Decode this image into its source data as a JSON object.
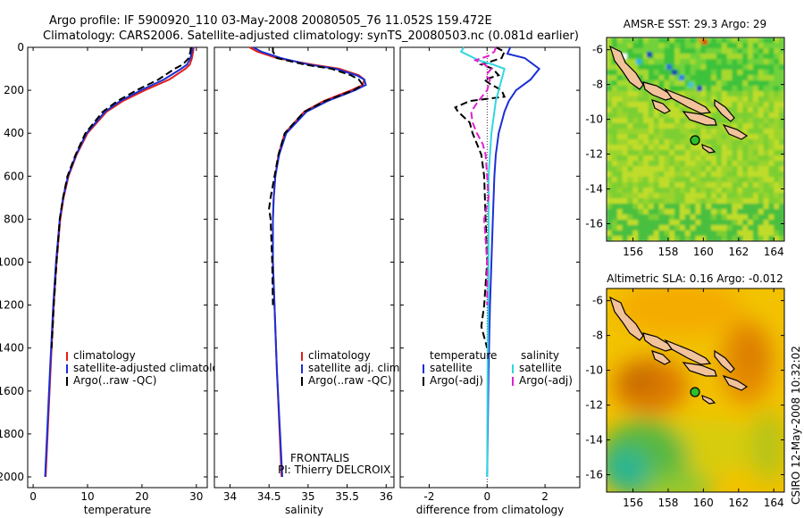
{
  "header": {
    "line1": "Argo profile: IF 5900920_110 03-May-2008 20080505_76 11.052S 159.472E",
    "line2": "Climatology: CARS2006. Satellite-adjusted climatology: synTS_20080503.nc (0.081d earlier)"
  },
  "side_text": "CSIRO 12-May-2008 10:32:02",
  "colors": {
    "climatology": "#e0201b",
    "satellite": "#1b2fd6",
    "argo": "#000000",
    "satellite_diff": "#33d6e0",
    "argo_adj_diff": "#e020d0"
  },
  "chart_data": [
    {
      "type": "line",
      "panel": "temperature",
      "xlabel": "temperature",
      "ylabel": "",
      "xlim": [
        -1,
        32
      ],
      "ylim": [
        2050,
        0
      ],
      "xticks": [
        0,
        10,
        20,
        30
      ],
      "yticks": [
        0,
        200,
        400,
        600,
        800,
        1000,
        1200,
        1400,
        1600,
        1800,
        2000
      ],
      "legend": [
        "climatology",
        "satellite-adjusted climatology",
        "Argo(..raw -QC)"
      ],
      "legend_position": "lower-left",
      "series": [
        {
          "name": "climatology",
          "depth": [
            0,
            20,
            50,
            80,
            100,
            150,
            200,
            250,
            300,
            400,
            500,
            600,
            700,
            800,
            1000,
            1200,
            1500,
            2000
          ],
          "values": [
            29.5,
            29.4,
            29.2,
            28.8,
            28.0,
            25.0,
            20.5,
            16.5,
            13.5,
            10.0,
            8.0,
            6.5,
            5.6,
            5.0,
            4.3,
            3.8,
            3.2,
            2.3
          ]
        },
        {
          "name": "satellite-adjusted climatology",
          "depth": [
            0,
            20,
            50,
            80,
            100,
            150,
            200,
            250,
            300,
            400,
            500,
            600,
            700,
            800,
            1000,
            1200,
            1500,
            2000
          ],
          "values": [
            29.3,
            29.2,
            28.9,
            28.3,
            27.2,
            24.0,
            19.8,
            16.0,
            13.2,
            9.8,
            7.9,
            6.4,
            5.5,
            4.9,
            4.2,
            3.7,
            3.1,
            2.2
          ]
        },
        {
          "name": "Argo(..raw -QC)",
          "depth": [
            0,
            20,
            50,
            80,
            100,
            150,
            200,
            250,
            300,
            400,
            500,
            600,
            700,
            800,
            1000,
            1200,
            1400
          ],
          "values": [
            29.0,
            28.9,
            28.6,
            27.5,
            26.0,
            23.0,
            19.0,
            15.5,
            12.8,
            9.6,
            7.8,
            6.3,
            5.5,
            4.9,
            4.3,
            3.8,
            3.4
          ]
        }
      ]
    },
    {
      "type": "line",
      "panel": "salinity",
      "xlabel": "salinity",
      "ylabel": "",
      "xlim": [
        33.8,
        36.1
      ],
      "ylim": [
        2050,
        0
      ],
      "xticks": [
        34,
        34.5,
        35,
        35.5,
        36
      ],
      "legend": [
        "climatology",
        "satellite adj. clim.",
        "Argo(..raw -QC)"
      ],
      "legend_position": "lower-right",
      "annotations": [
        "FRONTALIS",
        "PI: Thierry DELCROIX"
      ],
      "series": [
        {
          "name": "climatology",
          "depth": [
            0,
            20,
            50,
            80,
            100,
            130,
            150,
            175,
            200,
            250,
            300,
            400,
            500,
            600,
            700,
            800,
            1000,
            1500,
            2000
          ],
          "values": [
            34.25,
            34.35,
            34.6,
            35.05,
            35.4,
            35.65,
            35.72,
            35.7,
            35.55,
            35.2,
            34.95,
            34.7,
            34.62,
            34.58,
            34.56,
            34.55,
            34.55,
            34.6,
            34.66
          ]
        },
        {
          "name": "satellite adj. clim.",
          "depth": [
            0,
            20,
            50,
            80,
            100,
            130,
            150,
            175,
            200,
            250,
            300,
            400,
            500,
            600,
            700,
            800,
            1000,
            1500,
            2000
          ],
          "values": [
            34.3,
            34.4,
            34.65,
            35.0,
            35.35,
            35.62,
            35.72,
            35.74,
            35.6,
            35.25,
            34.98,
            34.72,
            34.63,
            34.58,
            34.56,
            34.55,
            34.55,
            34.6,
            34.67
          ]
        },
        {
          "name": "Argo(..raw -QC)",
          "depth": [
            0,
            20,
            50,
            80,
            100,
            130,
            150,
            175,
            200,
            250,
            300,
            400,
            500,
            600,
            700,
            750,
            800,
            1000,
            1200
          ],
          "values": [
            34.55,
            34.55,
            34.6,
            34.95,
            35.3,
            35.55,
            35.65,
            35.7,
            35.58,
            35.22,
            34.95,
            34.7,
            34.62,
            34.57,
            34.52,
            34.5,
            34.52,
            34.54,
            34.55
          ]
        }
      ]
    },
    {
      "type": "line",
      "panel": "difference",
      "xlabel": "difference from climatology",
      "ylabel": "",
      "xlim": [
        -3,
        3.2
      ],
      "ylim": [
        2050,
        0
      ],
      "xticks": [
        -2,
        0,
        2
      ],
      "legend": [
        "temperature",
        "satellite",
        "Argo(-adj)",
        "salinity",
        "satellite",
        "Argo(-adj)"
      ],
      "legend_position": "lower",
      "series": [
        {
          "name": "temperature satellite",
          "depth": [
            0,
            30,
            50,
            80,
            100,
            150,
            200,
            250,
            300,
            400,
            500,
            600,
            800,
            1000,
            1200,
            1500,
            2000
          ],
          "values": [
            0.8,
            0.7,
            1.3,
            1.6,
            1.8,
            1.5,
            1.0,
            0.75,
            0.6,
            0.4,
            0.3,
            0.25,
            0.2,
            0.15,
            0.1,
            0.05,
            0
          ]
        },
        {
          "name": "temperature Argo(-adj)",
          "depth": [
            0,
            20,
            50,
            80,
            100,
            130,
            150,
            170,
            200,
            230,
            250,
            280,
            300,
            350,
            400,
            500,
            600,
            800,
            1000,
            1200,
            1300,
            1400
          ],
          "values": [
            0.3,
            0.6,
            0.5,
            -0.2,
            0.2,
            0.4,
            -0.1,
            0.1,
            0.5,
            0.6,
            -0.6,
            -1.1,
            -1.0,
            -0.6,
            -0.5,
            -0.2,
            -0.1,
            -0.05,
            0,
            -0.1,
            -0.2,
            0
          ]
        },
        {
          "name": "salinity satellite",
          "depth": [
            0,
            20,
            40,
            60,
            80,
            100,
            150,
            200,
            250,
            300,
            400,
            500,
            600,
            800,
            1000,
            1500,
            2000
          ],
          "values": [
            -0.8,
            -0.9,
            -0.6,
            -0.3,
            0.2,
            0.6,
            0.5,
            0.4,
            0.3,
            0.25,
            0.15,
            0.1,
            0.05,
            0.05,
            0.05,
            0.02,
            0
          ]
        },
        {
          "name": "salinity Argo(-adj)",
          "depth": [
            0,
            20,
            40,
            60,
            80,
            100,
            130,
            150,
            200,
            250,
            300,
            350,
            400,
            450,
            500,
            600,
            700,
            800,
            1000,
            1200
          ],
          "values": [
            0.3,
            0.25,
            0.05,
            -0.4,
            -0.1,
            0.15,
            -0.05,
            0.1,
            0,
            -0.3,
            -0.55,
            -0.5,
            -0.35,
            -0.15,
            -0.05,
            0,
            0.05,
            -0.1,
            0,
            0
          ]
        }
      ]
    },
    {
      "type": "heatmap",
      "panel": "sst-map",
      "title": "AMSR-E SST: 29.3 Argo: 29",
      "xlim": [
        154.5,
        164.6
      ],
      "ylim": [
        -17,
        -5.3
      ],
      "xticks": [
        156,
        158,
        160,
        162,
        164
      ],
      "yticks": [
        -6,
        -8,
        -10,
        -12,
        -14,
        -16
      ],
      "marker": {
        "lon": 159.47,
        "lat": -11.05
      }
    },
    {
      "type": "heatmap",
      "panel": "sla-map",
      "title": "Altimetric SLA: 0.16 Argo: -0.012",
      "xlim": [
        154.5,
        164.6
      ],
      "ylim": [
        -17,
        -5.3
      ],
      "xticks": [
        156,
        158,
        160,
        162,
        164
      ],
      "yticks": [
        -6,
        -8,
        -10,
        -12,
        -14,
        -16
      ],
      "marker": {
        "lon": 159.47,
        "lat": -11.05
      }
    }
  ]
}
